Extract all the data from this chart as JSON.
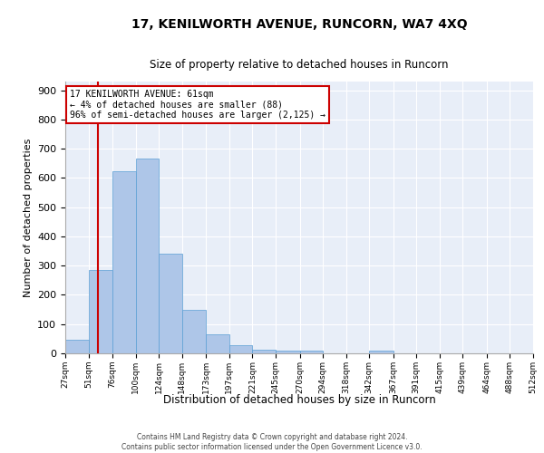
{
  "title": "17, KENILWORTH AVENUE, RUNCORN, WA7 4XQ",
  "subtitle": "Size of property relative to detached houses in Runcorn",
  "xlabel": "Distribution of detached houses by size in Runcorn",
  "ylabel": "Number of detached properties",
  "bar_color": "#aec6e8",
  "bar_edge_color": "#5a9fd4",
  "bar_heights": [
    45,
    285,
    622,
    665,
    342,
    148,
    65,
    28,
    12,
    8,
    8,
    0,
    0,
    8,
    0,
    0,
    0,
    0,
    0,
    0
  ],
  "bin_edges": [
    27,
    51,
    76,
    100,
    124,
    148,
    173,
    197,
    221,
    245,
    270,
    294,
    318,
    342,
    367,
    391,
    415,
    439,
    464,
    488,
    512
  ],
  "bin_labels": [
    "27sqm",
    "51sqm",
    "76sqm",
    "100sqm",
    "124sqm",
    "148sqm",
    "173sqm",
    "197sqm",
    "221sqm",
    "245sqm",
    "270sqm",
    "294sqm",
    "318sqm",
    "342sqm",
    "367sqm",
    "391sqm",
    "415sqm",
    "439sqm",
    "464sqm",
    "488sqm",
    "512sqm"
  ],
  "property_size": 61,
  "ylim": [
    0,
    930
  ],
  "yticks": [
    0,
    100,
    200,
    300,
    400,
    500,
    600,
    700,
    800,
    900
  ],
  "annotation_text": "17 KENILWORTH AVENUE: 61sqm\n← 4% of detached houses are smaller (88)\n96% of semi-detached houses are larger (2,125) →",
  "vline_color": "#cc0000",
  "annotation_box_color": "#cc0000",
  "background_color": "#e8eef8",
  "footer_line1": "Contains HM Land Registry data © Crown copyright and database right 2024.",
  "footer_line2": "Contains public sector information licensed under the Open Government Licence v3.0."
}
